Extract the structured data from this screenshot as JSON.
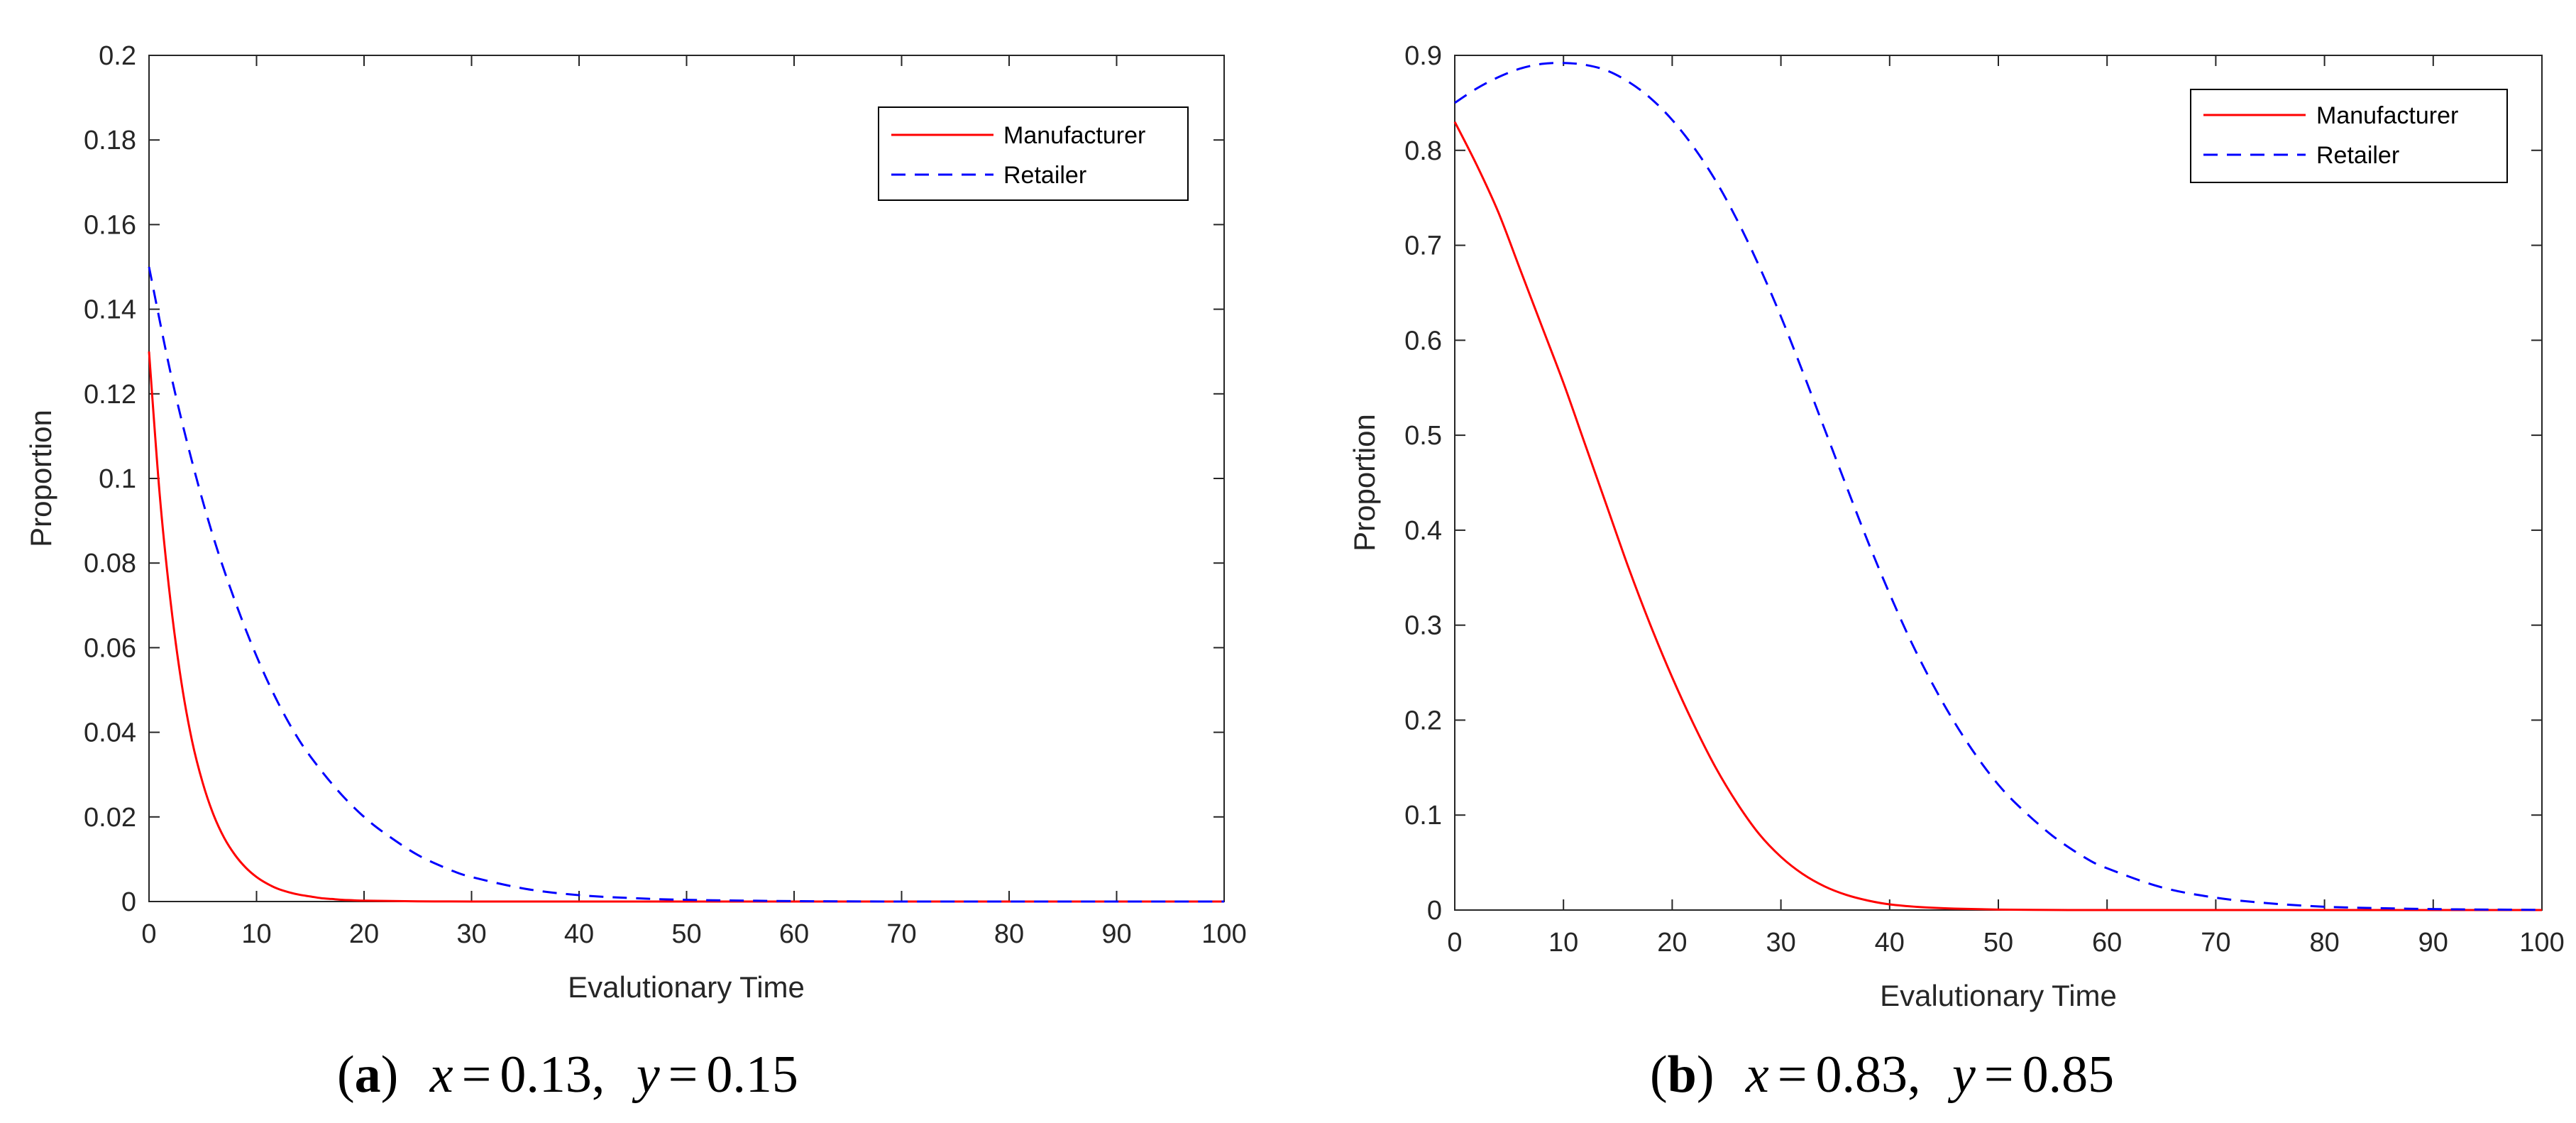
{
  "colors": {
    "manufacturer": "#ff0000",
    "retailer": "#0000ff",
    "axis": "#262626"
  },
  "chart_data": [
    {
      "type": "line",
      "panel_label": "(a)",
      "caption_tag": "a",
      "caption_x_symbol": "x",
      "caption_x_value": "0.13",
      "caption_y_symbol": "y",
      "caption_y_value": "0.15",
      "xlabel": "Evalutionary Time",
      "ylabel": "Proportion",
      "xlim": [
        0,
        100
      ],
      "ylim": [
        0,
        0.2
      ],
      "x_ticks": [
        0,
        10,
        20,
        30,
        40,
        50,
        60,
        70,
        80,
        90,
        100
      ],
      "y_ticks": [
        0,
        0.02,
        0.04,
        0.06,
        0.08,
        0.1,
        0.12,
        0.14,
        0.16,
        0.18,
        0.2
      ],
      "y_tick_labels": [
        "0",
        "0.02",
        "0.04",
        "0.06",
        "0.08",
        "0.1",
        "0.12",
        "0.14",
        "0.16",
        "0.18",
        "0.2"
      ],
      "legend_position": "top-right",
      "series": [
        {
          "name": "Manufacturer",
          "style": "solid",
          "x": [
            0,
            1,
            2,
            3,
            4,
            5,
            6,
            7,
            8,
            9,
            10,
            11,
            12,
            13,
            14,
            15,
            16,
            17,
            18,
            19,
            20,
            25,
            30,
            40,
            50,
            60,
            70,
            80,
            90,
            100
          ],
          "y": [
            0.13,
            0.096,
            0.071,
            0.052,
            0.038,
            0.028,
            0.0205,
            0.015,
            0.011,
            0.008,
            0.0058,
            0.0042,
            0.003,
            0.0022,
            0.0016,
            0.0012,
            0.0008,
            0.0006,
            0.0004,
            0.0003,
            0.0002,
            5e-05,
            0.0,
            0.0,
            0.0,
            0.0,
            0.0,
            0.0,
            0.0,
            0.0
          ]
        },
        {
          "name": "Retailer",
          "style": "dashed",
          "x": [
            0,
            2,
            4,
            6,
            8,
            10,
            12,
            14,
            16,
            18,
            20,
            22,
            25,
            28,
            30,
            35,
            40,
            45,
            50,
            60,
            70,
            80,
            90,
            100
          ],
          "y": [
            0.15,
            0.125,
            0.104,
            0.086,
            0.071,
            0.058,
            0.047,
            0.038,
            0.031,
            0.025,
            0.02,
            0.016,
            0.011,
            0.0075,
            0.0058,
            0.003,
            0.0015,
            0.0008,
            0.0004,
            0.0001,
            0.0,
            0.0,
            0.0,
            0.0
          ]
        }
      ]
    },
    {
      "type": "line",
      "panel_label": "(b)",
      "caption_tag": "b",
      "caption_x_symbol": "x",
      "caption_x_value": "0.83",
      "caption_y_symbol": "y",
      "caption_y_value": "0.85",
      "xlabel": "Evalutionary Time",
      "ylabel": "Proportion",
      "xlim": [
        0,
        100
      ],
      "ylim": [
        0,
        0.9
      ],
      "x_ticks": [
        0,
        10,
        20,
        30,
        40,
        50,
        60,
        70,
        80,
        90,
        100
      ],
      "y_ticks": [
        0,
        0.1,
        0.2,
        0.3,
        0.4,
        0.5,
        0.6,
        0.7,
        0.8,
        0.9
      ],
      "y_tick_labels": [
        "0",
        "0.1",
        "0.2",
        "0.3",
        "0.4",
        "0.5",
        "0.6",
        "0.7",
        "0.8",
        "0.9"
      ],
      "legend_position": "top-right",
      "series": [
        {
          "name": "Manufacturer",
          "style": "solid",
          "x": [
            0,
            2,
            4,
            6,
            8,
            10,
            12,
            14,
            16,
            18,
            20,
            22,
            24,
            26,
            28,
            30,
            32,
            34,
            36,
            38,
            40,
            43,
            46,
            50,
            55,
            60,
            70,
            80,
            90,
            100
          ],
          "y": [
            0.83,
            0.785,
            0.735,
            0.675,
            0.615,
            0.555,
            0.49,
            0.425,
            0.36,
            0.3,
            0.245,
            0.195,
            0.15,
            0.112,
            0.08,
            0.056,
            0.038,
            0.025,
            0.016,
            0.01,
            0.006,
            0.003,
            0.0015,
            0.0005,
            0.0001,
            0.0,
            0.0,
            0.0,
            0.0,
            0.0
          ]
        },
        {
          "name": "Retailer",
          "style": "dashed",
          "x": [
            0,
            2,
            4,
            6,
            8,
            10,
            12,
            14,
            16,
            18,
            20,
            22,
            24,
            26,
            28,
            30,
            32,
            34,
            36,
            38,
            40,
            42,
            44,
            46,
            48,
            50,
            52,
            55,
            58,
            60,
            65,
            70,
            75,
            80,
            85,
            90,
            95,
            100
          ],
          "y": [
            0.85,
            0.865,
            0.877,
            0.886,
            0.891,
            0.892,
            0.89,
            0.884,
            0.872,
            0.855,
            0.832,
            0.803,
            0.768,
            0.726,
            0.678,
            0.625,
            0.567,
            0.507,
            0.447,
            0.388,
            0.333,
            0.282,
            0.237,
            0.197,
            0.162,
            0.132,
            0.108,
            0.078,
            0.055,
            0.044,
            0.024,
            0.013,
            0.007,
            0.0035,
            0.002,
            0.001,
            0.0005,
            0.0002
          ]
        }
      ]
    }
  ]
}
